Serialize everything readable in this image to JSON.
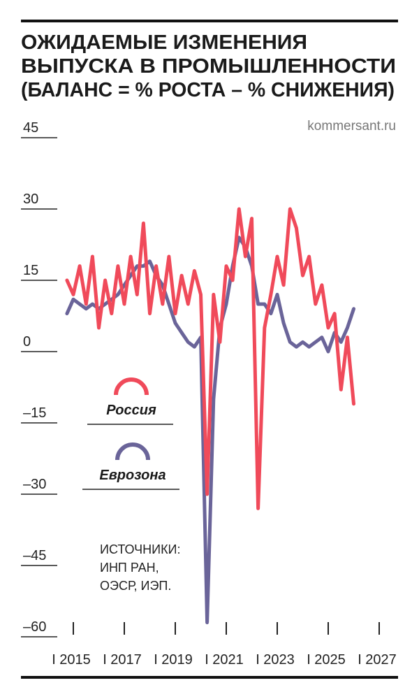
{
  "chart_data": {
    "type": "line",
    "title": [
      "ОЖИДАЕМЫЕ ИЗМЕНЕНИЯ",
      "ВЫПУСКА В ПРОМЫШЛЕННОСТИ",
      "(БАЛАНС = % РОСТА – % СНИЖЕНИЯ)"
    ],
    "source_site": "kommersant.ru",
    "sources": [
      "ИСТОЧНИКИ:",
      "ИНП РАН,",
      "ОЭСР, ИЭП."
    ],
    "x": [
      2014.75,
      2015,
      2015.25,
      2015.5,
      2015.75,
      2016,
      2016.25,
      2016.5,
      2016.75,
      2017,
      2017.25,
      2017.5,
      2017.75,
      2018,
      2018.25,
      2018.5,
      2018.75,
      2019,
      2019.25,
      2019.5,
      2019.75,
      2020,
      2020.25,
      2020.5,
      2020.75,
      2021,
      2021.25,
      2021.5,
      2021.75,
      2022,
      2022.25,
      2022.5,
      2022.75,
      2023,
      2023.25,
      2023.5,
      2023.75,
      2024,
      2024.25,
      2024.5,
      2024.75,
      2025,
      2025.25,
      2025.5,
      2025.75,
      2026
    ],
    "series": [
      {
        "name": "Россия",
        "color": "#f04a5a",
        "values": [
          15,
          12,
          18,
          10,
          20,
          5,
          15,
          8,
          18,
          10,
          20,
          12,
          27,
          8,
          18,
          10,
          20,
          8,
          16,
          10,
          17,
          12,
          -30,
          12,
          2,
          18,
          15,
          30,
          20,
          28,
          -33,
          5,
          12,
          20,
          14,
          30,
          26,
          16,
          20,
          10,
          14,
          5,
          8,
          -8,
          3,
          -11
        ]
      },
      {
        "name": "Еврозона",
        "color": "#6a6499",
        "values": [
          8,
          11,
          10,
          9,
          10,
          9,
          10,
          11,
          12,
          14,
          16,
          18,
          18,
          19,
          16,
          14,
          10,
          6,
          4,
          2,
          1,
          3,
          -57,
          -10,
          5,
          10,
          18,
          24,
          22,
          18,
          10,
          10,
          8,
          12,
          6,
          2,
          1,
          2,
          1,
          2,
          3,
          0,
          4,
          2,
          5,
          9
        ]
      }
    ],
    "xlim": [
      2014.5,
      2027.5
    ],
    "xticks": [
      {
        "value": 2015,
        "label": "I 2015"
      },
      {
        "value": 2017,
        "label": "I 2017"
      },
      {
        "value": 2019,
        "label": "I 2019"
      },
      {
        "value": 2021,
        "label": "I 2021"
      },
      {
        "value": 2023,
        "label": "I 2023"
      },
      {
        "value": 2025,
        "label": "I 2025"
      },
      {
        "value": 2027,
        "label": "I 2027"
      }
    ],
    "ylim": [
      -60,
      45
    ],
    "yticks": [
      45,
      30,
      15,
      0,
      {
        "value": -15,
        "label": "–15"
      },
      {
        "value": -30,
        "label": "–30"
      },
      {
        "value": -45,
        "label": "–45"
      },
      {
        "value": -60,
        "label": "–60"
      }
    ]
  }
}
